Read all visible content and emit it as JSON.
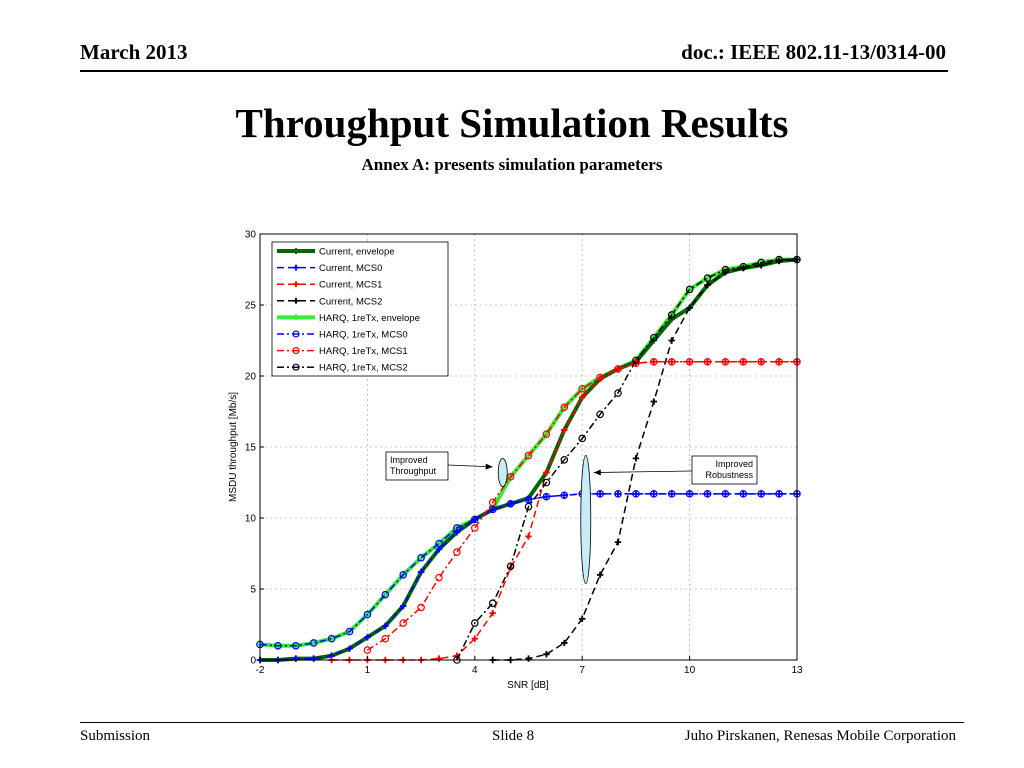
{
  "header": {
    "date": "March 2013",
    "doc": "doc.: IEEE 802.11-13/0314-00"
  },
  "slide": {
    "title": "Throughput Simulation Results",
    "subtitle": "Annex A: presents simulation parameters"
  },
  "footer": {
    "left": "Submission",
    "center": "Slide 8",
    "right": "Juho Pirskanen, Renesas Mobile Corporation"
  },
  "chart_data": {
    "type": "line",
    "xlabel": "SNR [dB]",
    "ylabel": "MSDU throughput  [Mb/s]",
    "xlim": [
      -2,
      13
    ],
    "ylim": [
      0,
      30
    ],
    "xticks": [
      -2,
      1,
      4,
      7,
      10,
      13
    ],
    "yticks": [
      0,
      5,
      10,
      15,
      20,
      25,
      30
    ],
    "grid": true,
    "legend_position": "top-left",
    "annotations": [
      {
        "text": [
          "Improved",
          "Throughput"
        ],
        "points_to": [
          4.5,
          13.6
        ]
      },
      {
        "text": [
          "Improved",
          "Robustness"
        ],
        "points_to": [
          7.1,
          13.2
        ]
      }
    ],
    "series": [
      {
        "name": "Current, envelope",
        "color": "#006400",
        "dash": "",
        "marker": "plus",
        "width": 4,
        "x": [
          -2,
          -1.5,
          -1,
          -0.5,
          0,
          0.5,
          1,
          1.5,
          2,
          2.5,
          3,
          3.5,
          4,
          4.5,
          5,
          5.5,
          6,
          6.5,
          7,
          7.5,
          8,
          8.5,
          9,
          9.5,
          10,
          10.5,
          11,
          11.5,
          12,
          12.5,
          13
        ],
        "y": [
          0,
          0,
          0.1,
          0.1,
          0.3,
          0.8,
          1.6,
          2.4,
          3.8,
          6.2,
          7.8,
          9,
          9.9,
          10.6,
          11,
          11.4,
          13.2,
          16.2,
          18.5,
          19.8,
          20.5,
          21,
          22.5,
          24,
          24.8,
          26.4,
          27.3,
          27.6,
          27.8,
          28.1,
          28.2
        ]
      },
      {
        "name": "Current, MCS0",
        "color": "#0000ff",
        "dash": "7,4",
        "marker": "plus",
        "width": 1.5,
        "x": [
          -2,
          -1.5,
          -1,
          -0.5,
          0,
          0.5,
          1,
          1.5,
          2,
          2.5,
          3,
          3.5,
          4,
          4.5,
          5,
          5.5,
          6,
          6.5,
          7,
          7.5,
          8,
          8.5,
          9,
          9.5,
          10,
          10.5,
          11,
          11.5,
          12,
          12.5,
          13
        ],
        "y": [
          0,
          0,
          0.1,
          0.1,
          0.3,
          0.8,
          1.6,
          2.4,
          3.8,
          6.2,
          7.8,
          9,
          9.9,
          10.6,
          11,
          11.3,
          11.5,
          11.6,
          11.7,
          11.7,
          11.7,
          11.7,
          11.7,
          11.7,
          11.7,
          11.7,
          11.7,
          11.7,
          11.7,
          11.7,
          11.7
        ]
      },
      {
        "name": "Current, MCS1",
        "color": "#ff0000",
        "dash": "7,4",
        "marker": "plus",
        "width": 1.5,
        "x": [
          0,
          0.5,
          1,
          1.5,
          2,
          2.5,
          3,
          3.5,
          4,
          4.5,
          5,
          5.5,
          6,
          6.5,
          7,
          7.5,
          8,
          8.5,
          9,
          9.5,
          10,
          10.5,
          11,
          11.5,
          12,
          12.5,
          13
        ],
        "y": [
          0,
          0,
          0,
          0,
          0,
          0,
          0.1,
          0.3,
          1.5,
          3.3,
          6.5,
          8.7,
          13.2,
          16.2,
          18.5,
          19.8,
          20.5,
          20.9,
          21,
          21,
          21,
          21,
          21,
          21,
          21,
          21,
          21
        ]
      },
      {
        "name": "Current, MCS2",
        "color": "#000000",
        "dash": "7,4",
        "marker": "plus",
        "width": 1.5,
        "x": [
          4.5,
          5,
          5.5,
          6,
          6.5,
          7,
          7.5,
          8,
          8.5,
          9,
          9.5,
          10,
          10.5,
          11,
          11.5,
          12,
          12.5,
          13
        ],
        "y": [
          0,
          0,
          0.1,
          0.4,
          1.2,
          2.9,
          6,
          8.3,
          14.2,
          18.2,
          22.5,
          24.8,
          26.4,
          27.3,
          27.6,
          27.8,
          28.1,
          28.2
        ]
      },
      {
        "name": "HARQ, 1reTx, envelope",
        "color": "#33ee33",
        "dash": "",
        "marker": "plus",
        "width": 4,
        "x": [
          -2,
          -1.5,
          -1,
          -0.5,
          0,
          0.5,
          1,
          1.5,
          2,
          2.5,
          3,
          3.5,
          4,
          4.5,
          5,
          5.5,
          6,
          6.5,
          7,
          7.5,
          8,
          8.5,
          9,
          9.5,
          10,
          10.5,
          11,
          11.5,
          12,
          12.5,
          13
        ],
        "y": [
          1.1,
          1,
          1,
          1.2,
          1.5,
          2,
          3.2,
          4.6,
          6,
          7.2,
          8.2,
          9.3,
          9.9,
          10.6,
          12.9,
          14.4,
          15.9,
          17.8,
          19.1,
          19.9,
          20.5,
          21.1,
          22.7,
          24.3,
          26.1,
          26.9,
          27.5,
          27.7,
          28,
          28.2,
          28.2
        ]
      },
      {
        "name": "HARQ, 1reTx, MCS0",
        "color": "#0000ff",
        "dash": "7,3,2,3",
        "marker": "circle",
        "width": 1.5,
        "x": [
          -2,
          -1.5,
          -1,
          -0.5,
          0,
          0.5,
          1,
          1.5,
          2,
          2.5,
          3,
          3.5,
          4,
          4.5,
          5,
          5.5,
          6,
          6.5,
          7,
          7.5,
          8,
          8.5,
          9,
          9.5,
          10,
          10.5,
          11,
          11.5,
          12,
          12.5,
          13
        ],
        "y": [
          1.1,
          1,
          1,
          1.2,
          1.5,
          2,
          3.2,
          4.6,
          6,
          7.2,
          8.2,
          9.3,
          9.9,
          10.6,
          11,
          11.3,
          11.5,
          11.6,
          11.7,
          11.7,
          11.7,
          11.7,
          11.7,
          11.7,
          11.7,
          11.7,
          11.7,
          11.7,
          11.7,
          11.7,
          11.7
        ]
      },
      {
        "name": "HARQ, 1reTx, MCS1",
        "color": "#ff0000",
        "dash": "7,3,2,3",
        "marker": "circle",
        "width": 1.5,
        "x": [
          1,
          1.5,
          2,
          2.5,
          3,
          3.5,
          4,
          4.5,
          5,
          5.5,
          6,
          6.5,
          7,
          7.5,
          8,
          8.5,
          9,
          9.5,
          10,
          10.5,
          11,
          11.5,
          12,
          12.5,
          13
        ],
        "y": [
          0.7,
          1.5,
          2.6,
          3.7,
          5.8,
          7.6,
          9.3,
          11.1,
          12.9,
          14.4,
          15.9,
          17.8,
          19.1,
          19.9,
          20.5,
          20.9,
          21,
          21,
          21,
          21,
          21,
          21,
          21,
          21,
          21
        ]
      },
      {
        "name": "HARQ, 1reTx, MCS2",
        "color": "#000000",
        "dash": "7,3,2,3",
        "marker": "circle",
        "width": 1.5,
        "x": [
          3.5,
          4,
          4.5,
          5,
          5.5,
          6,
          6.5,
          7,
          7.5,
          8,
          8.5,
          9,
          9.5,
          10,
          10.5,
          11,
          11.5,
          12,
          12.5,
          13
        ],
        "y": [
          0,
          2.6,
          4,
          6.6,
          10.8,
          12.5,
          14.1,
          15.6,
          17.3,
          18.8,
          21.1,
          22.7,
          24.3,
          26.1,
          26.9,
          27.5,
          27.7,
          28,
          28.2,
          28.2
        ]
      }
    ]
  }
}
